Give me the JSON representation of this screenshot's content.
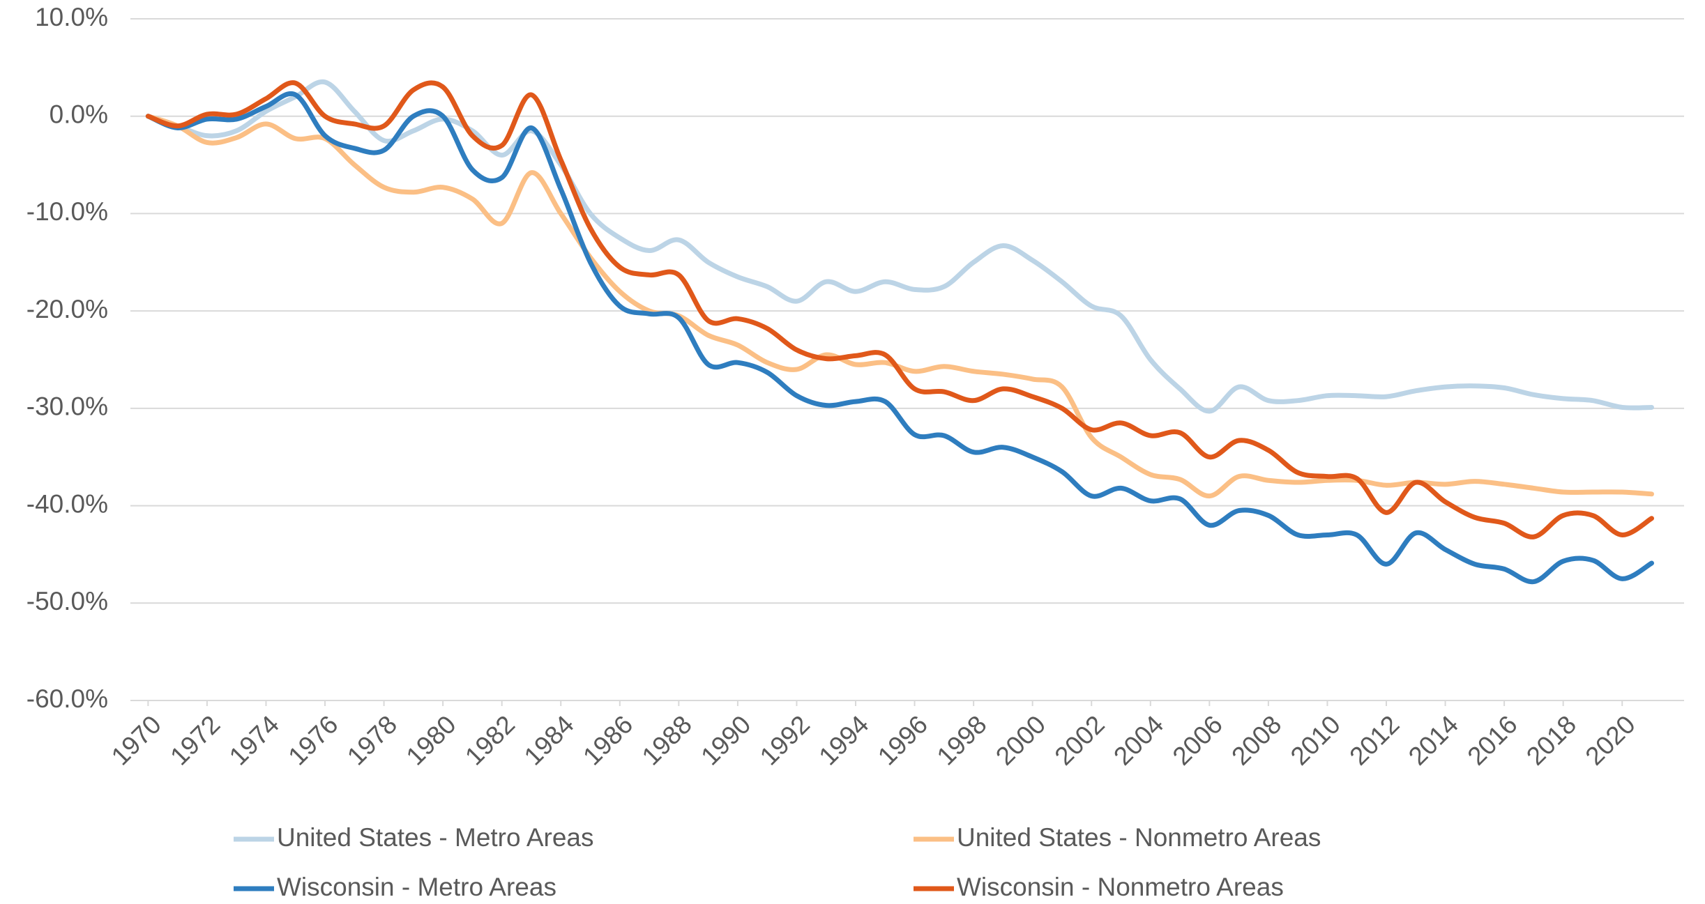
{
  "chart_data": {
    "type": "line",
    "x": [
      1970,
      1971,
      1972,
      1973,
      1974,
      1975,
      1976,
      1977,
      1978,
      1979,
      1980,
      1981,
      1982,
      1983,
      1984,
      1985,
      1986,
      1987,
      1988,
      1989,
      1990,
      1991,
      1992,
      1993,
      1994,
      1995,
      1996,
      1997,
      1998,
      1999,
      2000,
      2001,
      2002,
      2003,
      2004,
      2005,
      2006,
      2007,
      2008,
      2009,
      2010,
      2011,
      2012,
      2013,
      2014,
      2015,
      2016,
      2017,
      2018,
      2019,
      2020,
      2021
    ],
    "xlim": [
      1969.4,
      2022.1
    ],
    "xticks": [
      1970,
      1972,
      1974,
      1976,
      1978,
      1980,
      1982,
      1984,
      1986,
      1988,
      1990,
      1992,
      1994,
      1996,
      1998,
      2000,
      2002,
      2004,
      2006,
      2008,
      2010,
      2012,
      2014,
      2016,
      2018,
      2020
    ],
    "ylim": [
      -60,
      10
    ],
    "yticks": [
      {
        "value": -60,
        "label": "-60.0%"
      },
      {
        "value": -50,
        "label": "-50.0%"
      },
      {
        "value": -40,
        "label": "-40.0%"
      },
      {
        "value": -30,
        "label": "-30.0%"
      },
      {
        "value": -20,
        "label": "-20.0%"
      },
      {
        "value": -10,
        "label": "-10.0%"
      },
      {
        "value": 0,
        "label": "0.0%"
      },
      {
        "value": 10,
        "label": "10.0%"
      }
    ],
    "grid": true,
    "legend": "bottom",
    "series": [
      {
        "name": "United States - Metro Areas",
        "color": "#bcd4e6",
        "values": [
          0,
          -1,
          -2,
          -1.5,
          0.5,
          2,
          3.5,
          0.5,
          -2.5,
          -1.5,
          -0.3,
          -1.5,
          -4,
          -1.5,
          -5,
          -10,
          -12.5,
          -13.8,
          -12.7,
          -15,
          -16.5,
          -17.5,
          -19,
          -17,
          -18,
          -17,
          -17.8,
          -17.5,
          -15,
          -13.3,
          -14.8,
          -17,
          -19.5,
          -20.5,
          -25,
          -28,
          -30.3,
          -27.8,
          -29.2,
          -29.2,
          -28.7,
          -28.7,
          -28.8,
          -28.2,
          -27.8,
          -27.7,
          -27.9,
          -28.6,
          -29,
          -29.2,
          -29.9,
          -29.9
        ]
      },
      {
        "name": "United States - Nonmetro Areas",
        "color": "#fbbf85",
        "values": [
          0,
          -1,
          -2.7,
          -2.2,
          -0.8,
          -2.3,
          -2.3,
          -5,
          -7.3,
          -7.8,
          -7.3,
          -8.5,
          -11,
          -5.8,
          -10,
          -14.5,
          -18,
          -20,
          -20.5,
          -22.5,
          -23.5,
          -25.3,
          -26,
          -24.5,
          -25.5,
          -25.3,
          -26.2,
          -25.7,
          -26.2,
          -26.5,
          -27,
          -27.8,
          -33,
          -35,
          -36.8,
          -37.3,
          -39,
          -37,
          -37.4,
          -37.6,
          -37.4,
          -37.4,
          -37.9,
          -37.6,
          -37.8,
          -37.5,
          -37.8,
          -38.2,
          -38.6,
          -38.6,
          -38.6,
          -38.8
        ]
      },
      {
        "name": "Wisconsin - Metro Areas",
        "color": "#2e7dbf",
        "values": [
          0,
          -1.2,
          -0.3,
          -0.3,
          1,
          2.2,
          -2,
          -3.3,
          -3.5,
          0,
          0,
          -5.5,
          -6.3,
          -1.2,
          -7.5,
          -15,
          -19.5,
          -20.3,
          -20.7,
          -25.5,
          -25.3,
          -26.3,
          -28.7,
          -29.7,
          -29.3,
          -29.3,
          -32.7,
          -32.8,
          -34.5,
          -34,
          -35,
          -36.5,
          -39,
          -38.2,
          -39.5,
          -39.3,
          -42,
          -40.5,
          -41,
          -43,
          -43,
          -43,
          -46,
          -42.8,
          -44.5,
          -46,
          -46.5,
          -47.8,
          -45.7,
          -45.6,
          -47.5,
          -45.9
        ]
      },
      {
        "name": "Wisconsin - Nonmetro Areas",
        "color": "#e0581a",
        "values": [
          0,
          -1,
          0.2,
          0.2,
          1.8,
          3.4,
          0,
          -0.8,
          -1,
          2.7,
          3,
          -2,
          -3,
          2.2,
          -4.5,
          -11.5,
          -15.5,
          -16.3,
          -16.3,
          -21,
          -20.8,
          -21.8,
          -24,
          -24.9,
          -24.6,
          -24.5,
          -28,
          -28.3,
          -29.2,
          -28,
          -28.8,
          -30,
          -32.2,
          -31.5,
          -32.8,
          -32.5,
          -35,
          -33.3,
          -34.3,
          -36.6,
          -37,
          -37.2,
          -40.7,
          -37.6,
          -39.6,
          -41.2,
          -41.8,
          -43.2,
          -41,
          -41,
          -43,
          -41.3
        ]
      }
    ]
  }
}
